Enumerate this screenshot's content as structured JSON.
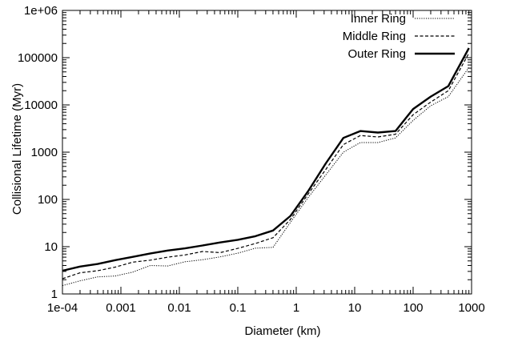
{
  "chart_data": {
    "type": "line",
    "title": "",
    "xlabel": "Diameter (km)",
    "ylabel": "Collisional Lifetime (Myr)",
    "x_scale": "log",
    "y_scale": "log",
    "xlim": [
      0.0001,
      1000
    ],
    "ylim": [
      1,
      1000000
    ],
    "x_ticks": [
      {
        "value": 0.0001,
        "label": "1e-04"
      },
      {
        "value": 0.001,
        "label": "0.001"
      },
      {
        "value": 0.01,
        "label": "0.01"
      },
      {
        "value": 0.1,
        "label": "0.1"
      },
      {
        "value": 1,
        "label": "1"
      },
      {
        "value": 10,
        "label": "10"
      },
      {
        "value": 100,
        "label": "100"
      },
      {
        "value": 1000,
        "label": "1000"
      }
    ],
    "y_ticks": [
      {
        "value": 1,
        "label": "1"
      },
      {
        "value": 10,
        "label": "10"
      },
      {
        "value": 100,
        "label": "100"
      },
      {
        "value": 1000,
        "label": "1000"
      },
      {
        "value": 10000,
        "label": "10000"
      },
      {
        "value": 100000,
        "label": "100000"
      },
      {
        "value": 1000000,
        "label": "1e+06"
      }
    ],
    "grid": false,
    "legend_position": "top-right",
    "series": [
      {
        "name": "Inner Ring",
        "style": "dotted",
        "color": "#000000",
        "x": [
          0.0001,
          0.0002,
          0.0004,
          0.0008,
          0.0016,
          0.0032,
          0.0063,
          0.0125,
          0.025,
          0.05,
          0.1,
          0.2,
          0.4,
          0.8,
          1.6,
          3.2,
          6.4,
          12.5,
          25,
          50,
          100,
          200,
          400,
          900
        ],
        "y": [
          1.5,
          1.9,
          2.3,
          2.4,
          2.9,
          4.0,
          3.9,
          4.8,
          5.3,
          6.1,
          7.3,
          9.3,
          9.7,
          33,
          110,
          330,
          1000,
          1600,
          1600,
          2000,
          4700,
          9600,
          15000,
          62000
        ]
      },
      {
        "name": "Middle Ring",
        "style": "dashed",
        "color": "#000000",
        "x": [
          0.0001,
          0.0002,
          0.0004,
          0.0008,
          0.0016,
          0.0032,
          0.0063,
          0.0125,
          0.025,
          0.05,
          0.1,
          0.2,
          0.4,
          0.8,
          1.6,
          3.2,
          6.4,
          12.5,
          25,
          50,
          100,
          200,
          400,
          900
        ],
        "y": [
          2.1,
          2.8,
          3.1,
          3.7,
          4.7,
          5.2,
          6.0,
          6.7,
          7.9,
          7.5,
          9.2,
          11.7,
          15.5,
          38,
          130,
          430,
          1450,
          2250,
          2100,
          2400,
          6200,
          11500,
          20000,
          125000
        ]
      },
      {
        "name": "Outer Ring",
        "style": "solid",
        "color": "#000000",
        "x": [
          0.0001,
          0.0002,
          0.0004,
          0.0008,
          0.0016,
          0.0032,
          0.0063,
          0.0125,
          0.025,
          0.05,
          0.1,
          0.2,
          0.4,
          0.8,
          1.6,
          3.2,
          6.4,
          12.5,
          25,
          50,
          100,
          200,
          400,
          900
        ],
        "y": [
          3.1,
          3.8,
          4.3,
          5.2,
          6.1,
          7.2,
          8.3,
          9.2,
          10.6,
          12.3,
          14.0,
          16.7,
          22,
          45,
          150,
          580,
          2000,
          2800,
          2600,
          2800,
          8200,
          15000,
          25000,
          160000
        ]
      }
    ]
  }
}
